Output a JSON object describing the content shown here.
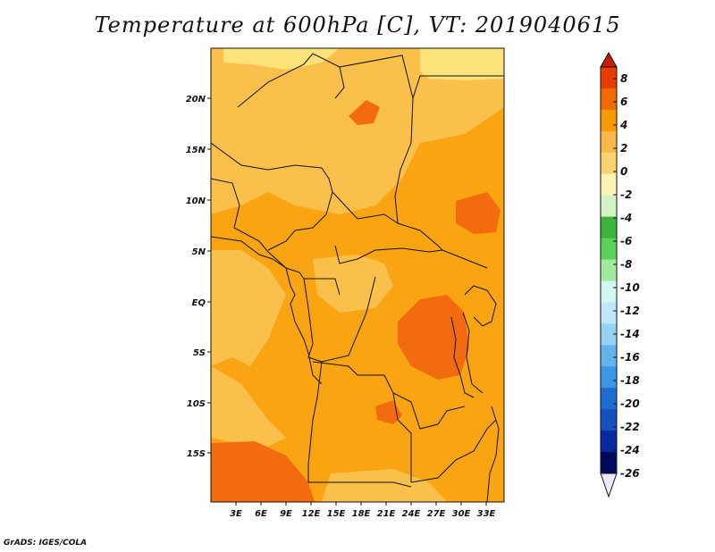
{
  "title": "Temperature at 600hPa [C], VT: 2019040615",
  "credit": "GrADS: IGES/COLA",
  "map": {
    "lat_ticks": [
      "20N",
      "15N",
      "10N",
      "5N",
      "EQ",
      "5S",
      "10S",
      "15S"
    ],
    "lon_ticks": [
      "3E",
      "6E",
      "9E",
      "12E",
      "15E",
      "18E",
      "21E",
      "24E",
      "27E",
      "30E",
      "33E"
    ]
  },
  "colorbar": {
    "levels": [
      "8",
      "6",
      "4",
      "2",
      "0",
      "-2",
      "-4",
      "-6",
      "-8",
      "-10",
      "-12",
      "-14",
      "-16",
      "-18",
      "-20",
      "-22",
      "-24",
      "-26"
    ],
    "colors": [
      "#c81e00",
      "#e83c00",
      "#f06a00",
      "#f79a00",
      "#f9b84a",
      "#fbd36e",
      "#fdf4b4",
      "#d2f3c2",
      "#3cb43c",
      "#5ad25a",
      "#a0eaa0",
      "#d2f6f0",
      "#bfe6fa",
      "#96d2f4",
      "#64b4ec",
      "#3c96e6",
      "#1e6ed2",
      "#1450be",
      "#0a28a0",
      "#000a5a"
    ],
    "top_color": "#c81e00",
    "bottom_color": "#e8e8f8"
  },
  "colors": {
    "base": "#f9a413",
    "warm": "#f26b0f",
    "cool": "#fbc04b",
    "cooler": "#fde27a"
  }
}
